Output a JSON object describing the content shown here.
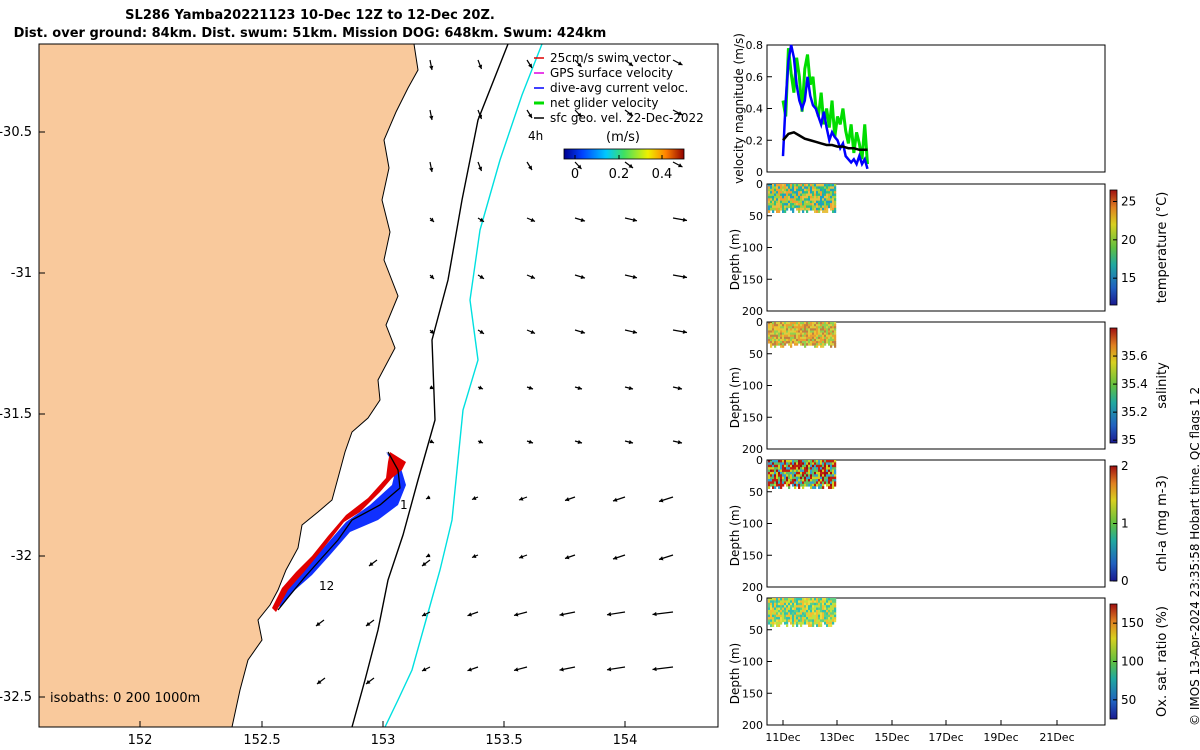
{
  "header": {
    "title_line1": "SL286 Yamba20221123 10-Dec 12Z to 12-Dec 20Z.",
    "title_line2": "Dist. over ground: 84km. Dist. swum: 51km. Mission DOG: 648km. Swum: 424km"
  },
  "map": {
    "x_ticks": [
      "152",
      "152.5",
      "153",
      "153.5",
      "154"
    ],
    "y_ticks": [
      "-30.5",
      "-31",
      "-31.5",
      "-32",
      "-32.5"
    ],
    "isobath_label": "isobaths: 0   200  1000m",
    "track_labels": [
      "1",
      "12",
      "4h"
    ],
    "legend": [
      {
        "label": "25cm/s swim vector",
        "color": "#e00000"
      },
      {
        "label": "GPS surface velocity",
        "color": "#e000e0"
      },
      {
        "label": "dive-avg current veloc.",
        "color": "#0000ff"
      },
      {
        "label": "net glider velocity",
        "color": "#00dd00"
      },
      {
        "label": "sfc geo. vel. 22-Dec-2022",
        "color": "#000000"
      }
    ],
    "colorbar": {
      "title": "(m/s)",
      "ticks": [
        "0",
        "0.2",
        "0.4"
      ]
    },
    "colors": {
      "land": "#f9c99c",
      "coast": "#000000",
      "isobath_1000": "#00e0e0",
      "isobath_200": "#000000"
    }
  },
  "chart_data": [
    {
      "type": "line",
      "ylabel": "velocity magnitude (m/s)",
      "y_ticks": [
        "0",
        "0.2",
        "0.4",
        "0.6",
        "0.8"
      ],
      "ylim": [
        0,
        0.8
      ],
      "series": [
        {
          "color": "#00dd00",
          "x": [
            0,
            0.1,
            0.2,
            0.3,
            0.4,
            0.5,
            0.6,
            0.7,
            0.8,
            0.9,
            1.0,
            1.1,
            1.2,
            1.3,
            1.4,
            1.5,
            1.6,
            1.7,
            1.8,
            1.9,
            2.0,
            2.1,
            2.2,
            2.3,
            2.4,
            2.5,
            2.6,
            2.7,
            2.8,
            2.9,
            3.0,
            3.1
          ],
          "values": [
            0.45,
            0.35,
            0.78,
            0.62,
            0.5,
            0.72,
            0.6,
            0.38,
            0.65,
            0.74,
            0.55,
            0.6,
            0.42,
            0.35,
            0.5,
            0.3,
            0.4,
            0.28,
            0.45,
            0.22,
            0.35,
            0.3,
            0.4,
            0.26,
            0.18,
            0.3,
            0.12,
            0.25,
            0.18,
            0.08,
            0.3,
            0.05
          ]
        },
        {
          "color": "#0000ff",
          "x": [
            0,
            0.1,
            0.2,
            0.3,
            0.4,
            0.5,
            0.6,
            0.7,
            0.8,
            0.9,
            1.0,
            1.1,
            1.2,
            1.3,
            1.4,
            1.5,
            1.6,
            1.7,
            1.8,
            1.9,
            2.0,
            2.1,
            2.2,
            2.3,
            2.4,
            2.5,
            2.6,
            2.7,
            2.8,
            2.9,
            3.0,
            3.1
          ],
          "values": [
            0.1,
            0.45,
            0.7,
            0.8,
            0.72,
            0.55,
            0.45,
            0.4,
            0.45,
            0.6,
            0.48,
            0.42,
            0.4,
            0.35,
            0.3,
            0.38,
            0.28,
            0.2,
            0.25,
            0.22,
            0.2,
            0.15,
            0.18,
            0.1,
            0.08,
            0.06,
            0.08,
            0.05,
            0.1,
            0.05,
            0.08,
            0.02
          ]
        },
        {
          "color": "#000000",
          "x": [
            0,
            0.2,
            0.4,
            0.6,
            0.8,
            1.0,
            1.2,
            1.4,
            1.6,
            1.8,
            2.0,
            2.2,
            2.4,
            2.6,
            2.8,
            3.0,
            3.1
          ],
          "values": [
            0.2,
            0.24,
            0.25,
            0.23,
            0.21,
            0.2,
            0.19,
            0.18,
            0.17,
            0.17,
            0.16,
            0.16,
            0.15,
            0.15,
            0.14,
            0.14,
            0.14
          ]
        }
      ]
    },
    {
      "type": "heatmap",
      "ylabel": "Depth (m)",
      "colorbar_label": "temperature (°C)",
      "colorbar_ticks": [
        "15",
        "20",
        "25"
      ],
      "clim": [
        11.5,
        26.5
      ],
      "y_ticks": [
        "0",
        "50",
        "100",
        "150",
        "200"
      ],
      "depth_range": [
        0,
        45
      ],
      "colors": [
        "#f0a030",
        "#e8c040",
        "#a0d040",
        "#30c080",
        "#20a0c0"
      ]
    },
    {
      "type": "heatmap",
      "ylabel": "Depth (m)",
      "colorbar_label": "salinity",
      "colorbar_ticks": [
        "35",
        "35.2",
        "35.4",
        "35.6"
      ],
      "clim": [
        34.98,
        35.8
      ],
      "y_ticks": [
        "0",
        "50",
        "100",
        "150",
        "200"
      ],
      "depth_range": [
        0,
        40
      ],
      "colors": [
        "#f0c030",
        "#e8a030",
        "#d8d040",
        "#90d050",
        "#c08040"
      ]
    },
    {
      "type": "heatmap",
      "ylabel": "Depth (m)",
      "colorbar_label": "chl-a (mg m-3)",
      "colorbar_ticks": [
        "0",
        "1",
        "2"
      ],
      "clim": [
        0,
        2
      ],
      "y_ticks": [
        "0",
        "50",
        "100",
        "150",
        "200"
      ],
      "depth_range": [
        0,
        45
      ],
      "colors": [
        "#a01010",
        "#c02010",
        "#30a0d0",
        "#60c060",
        "#d0d020"
      ]
    },
    {
      "type": "heatmap",
      "ylabel": "Depth (m)",
      "colorbar_label": "Ox. sat. ratio (%)",
      "colorbar_ticks": [
        "50",
        "100",
        "150"
      ],
      "clim": [
        25,
        175
      ],
      "y_ticks": [
        "0",
        "50",
        "100",
        "150",
        "200"
      ],
      "depth_range": [
        0,
        45
      ],
      "colors": [
        "#e8e040",
        "#c0e040",
        "#60d080",
        "#30c0b0",
        "#f0c030"
      ]
    }
  ],
  "time_axis": {
    "ticks": [
      "11Dec",
      "13Dec",
      "15Dec",
      "17Dec",
      "19Dec",
      "21Dec"
    ]
  },
  "footer": {
    "stamp": "© IMOS 13-Apr-2024 23:35:58 Hobart time. QC flags 1  2"
  }
}
